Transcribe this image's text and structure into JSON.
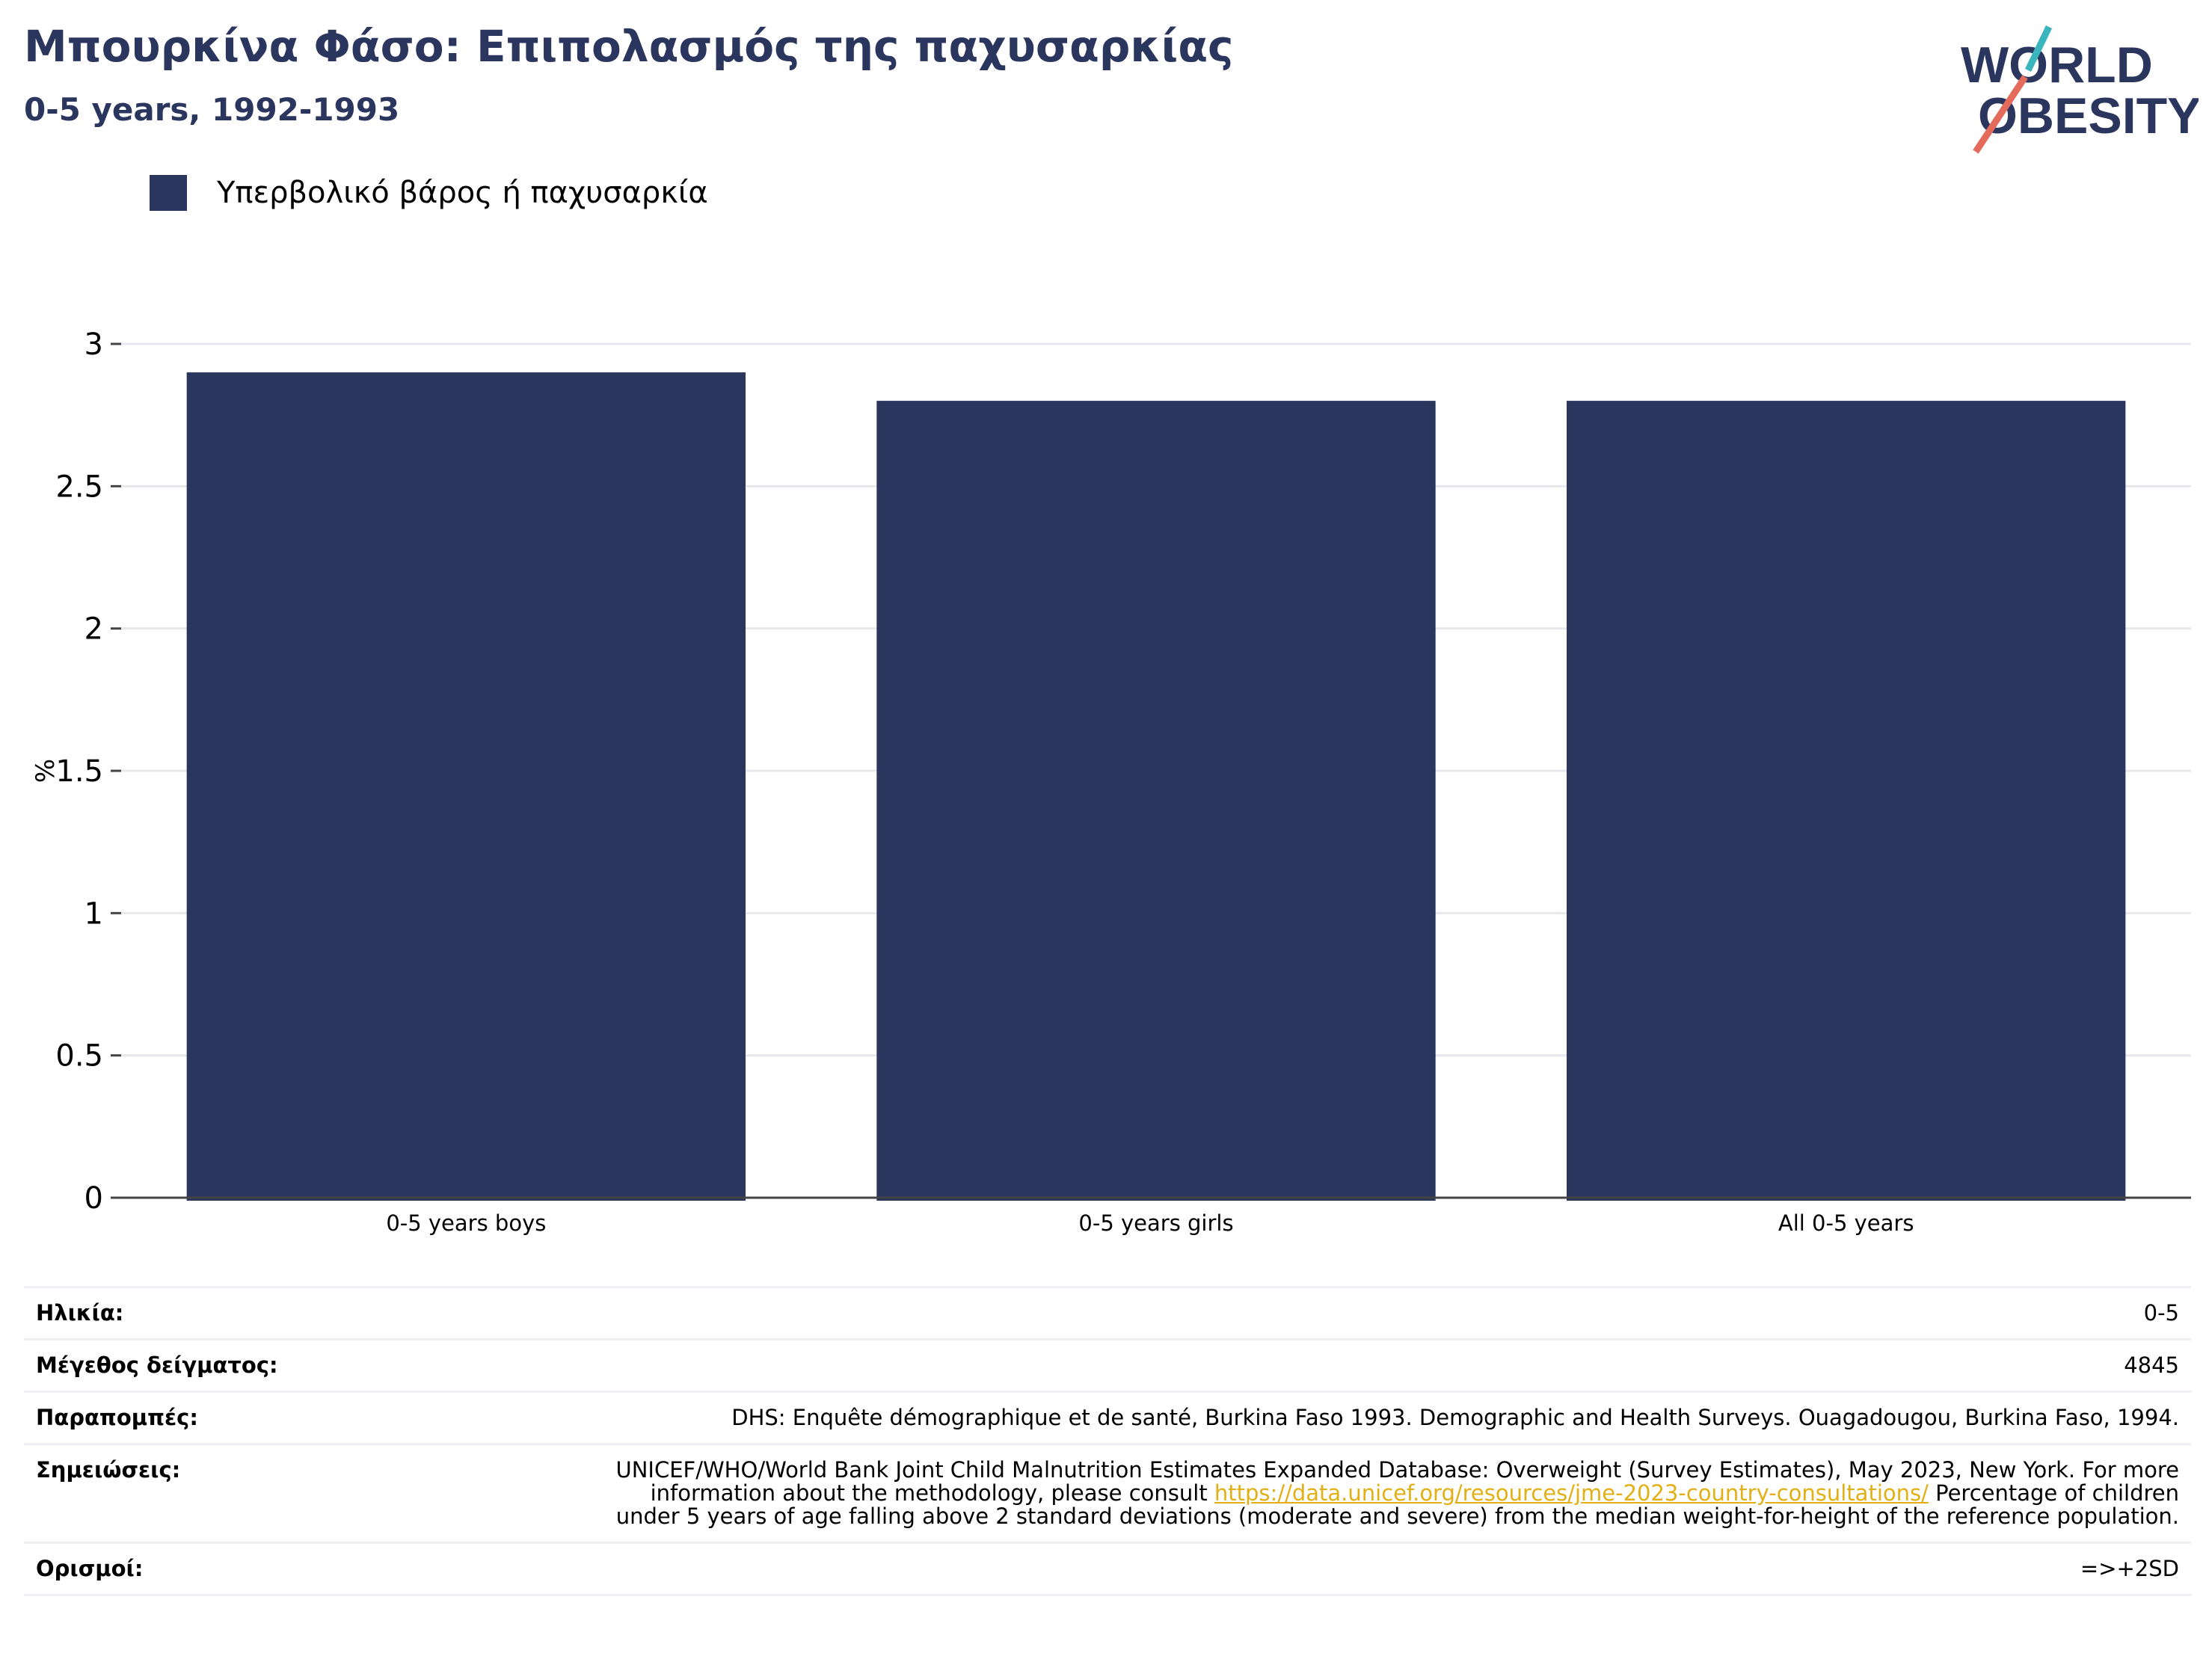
{
  "header": {
    "title": "Μπουρκίνα Φάσο: Επιπολασμός της παχυσαρκίας",
    "subtitle": "0-5 years, 1992-1993"
  },
  "logo": {
    "line1": "WORLD",
    "line2": "OBESITY"
  },
  "chart_data": {
    "type": "bar",
    "categories": [
      "0-5 years boys",
      "0-5 years girls",
      "All 0-5 years"
    ],
    "series": [
      {
        "name": "Υπερβολικό βάρος ή παχυσαρκία",
        "values": [
          2.9,
          2.8,
          2.8
        ],
        "color": "#2b365f"
      }
    ],
    "ylabel": "%",
    "ylim": [
      0,
      3
    ],
    "yticks": [
      0,
      0.5,
      1,
      1.5,
      2,
      2.5,
      3
    ],
    "ytick_labels": [
      "0",
      "0.5",
      "1",
      "1.5",
      "2",
      "2.5",
      "3"
    ],
    "grid": true,
    "legend_position": "top-left"
  },
  "info": {
    "age_label": "Ηλικία:",
    "age_value": "0-5",
    "sample_label": "Μέγεθος δείγματος:",
    "sample_value": "4845",
    "refs_label": "Παραπομπές:",
    "refs_value": "DHS: Enquête démographique et de santé, Burkina Faso 1993. Demographic and Health Surveys. Ouagadougou, Burkina Faso, 1994.",
    "notes_label": "Σημειώσεις:",
    "notes_before": "UNICEF/WHO/World Bank Joint Child Malnutrition Estimates Expanded Database: Overweight (Survey Estimates), May 2023, New York. For more information about the methodology, please consult ",
    "notes_link": "https://data.unicef.org/resources/jme-2023-country-consultations/",
    "notes_after": " Percentage of children under 5 years of age falling above 2 standard deviations (moderate and severe) from the median weight-for-height of the reference population.",
    "defs_label": "Ορισμοί:",
    "defs_value": "=>+2SD"
  },
  "colors": {
    "brand": "#2b365f",
    "link": "#e2b015",
    "logo_teal": "#3ab5be",
    "logo_coral": "#e46b5c"
  }
}
